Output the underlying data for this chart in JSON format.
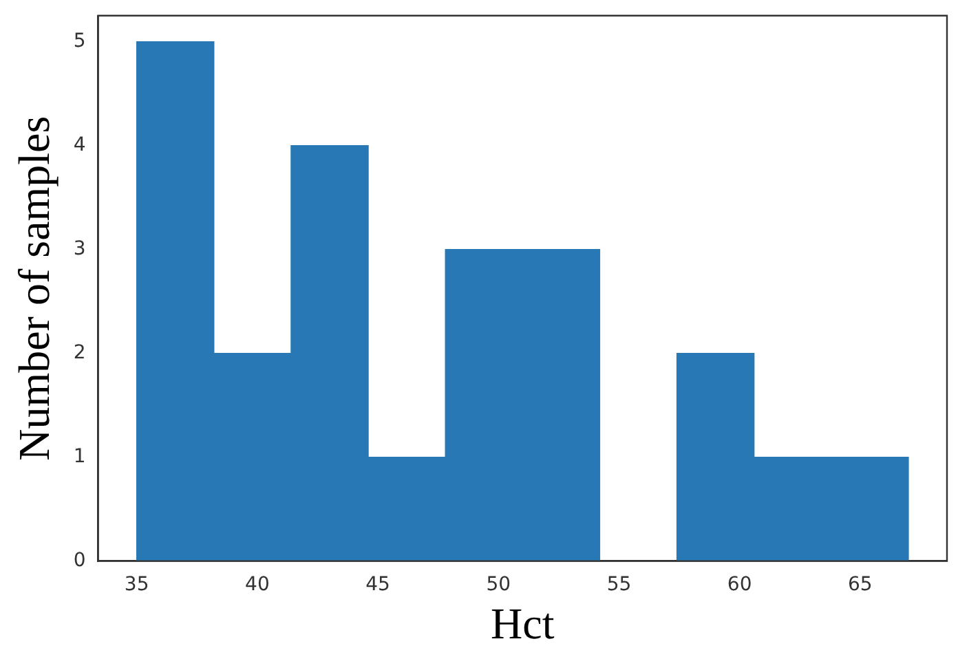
{
  "chart_data": {
    "type": "histogram",
    "xlabel": "Hct",
    "ylabel": "Number of samples",
    "bins": [
      35,
      38.2,
      41.4,
      44.6,
      47.8,
      51,
      54.2,
      57.4,
      60.6,
      63.8,
      67
    ],
    "values": [
      5,
      2,
      4,
      1,
      3,
      3,
      0,
      2,
      1,
      1
    ],
    "color": "#2878b5",
    "xlim": [
      33.4,
      68.6
    ],
    "xticks": [
      35,
      40,
      45,
      50,
      55,
      60,
      65
    ],
    "ylim": [
      0,
      5.25
    ],
    "yticks": [
      0,
      1,
      2,
      3,
      4,
      5
    ],
    "grid": false,
    "legend": false
  }
}
